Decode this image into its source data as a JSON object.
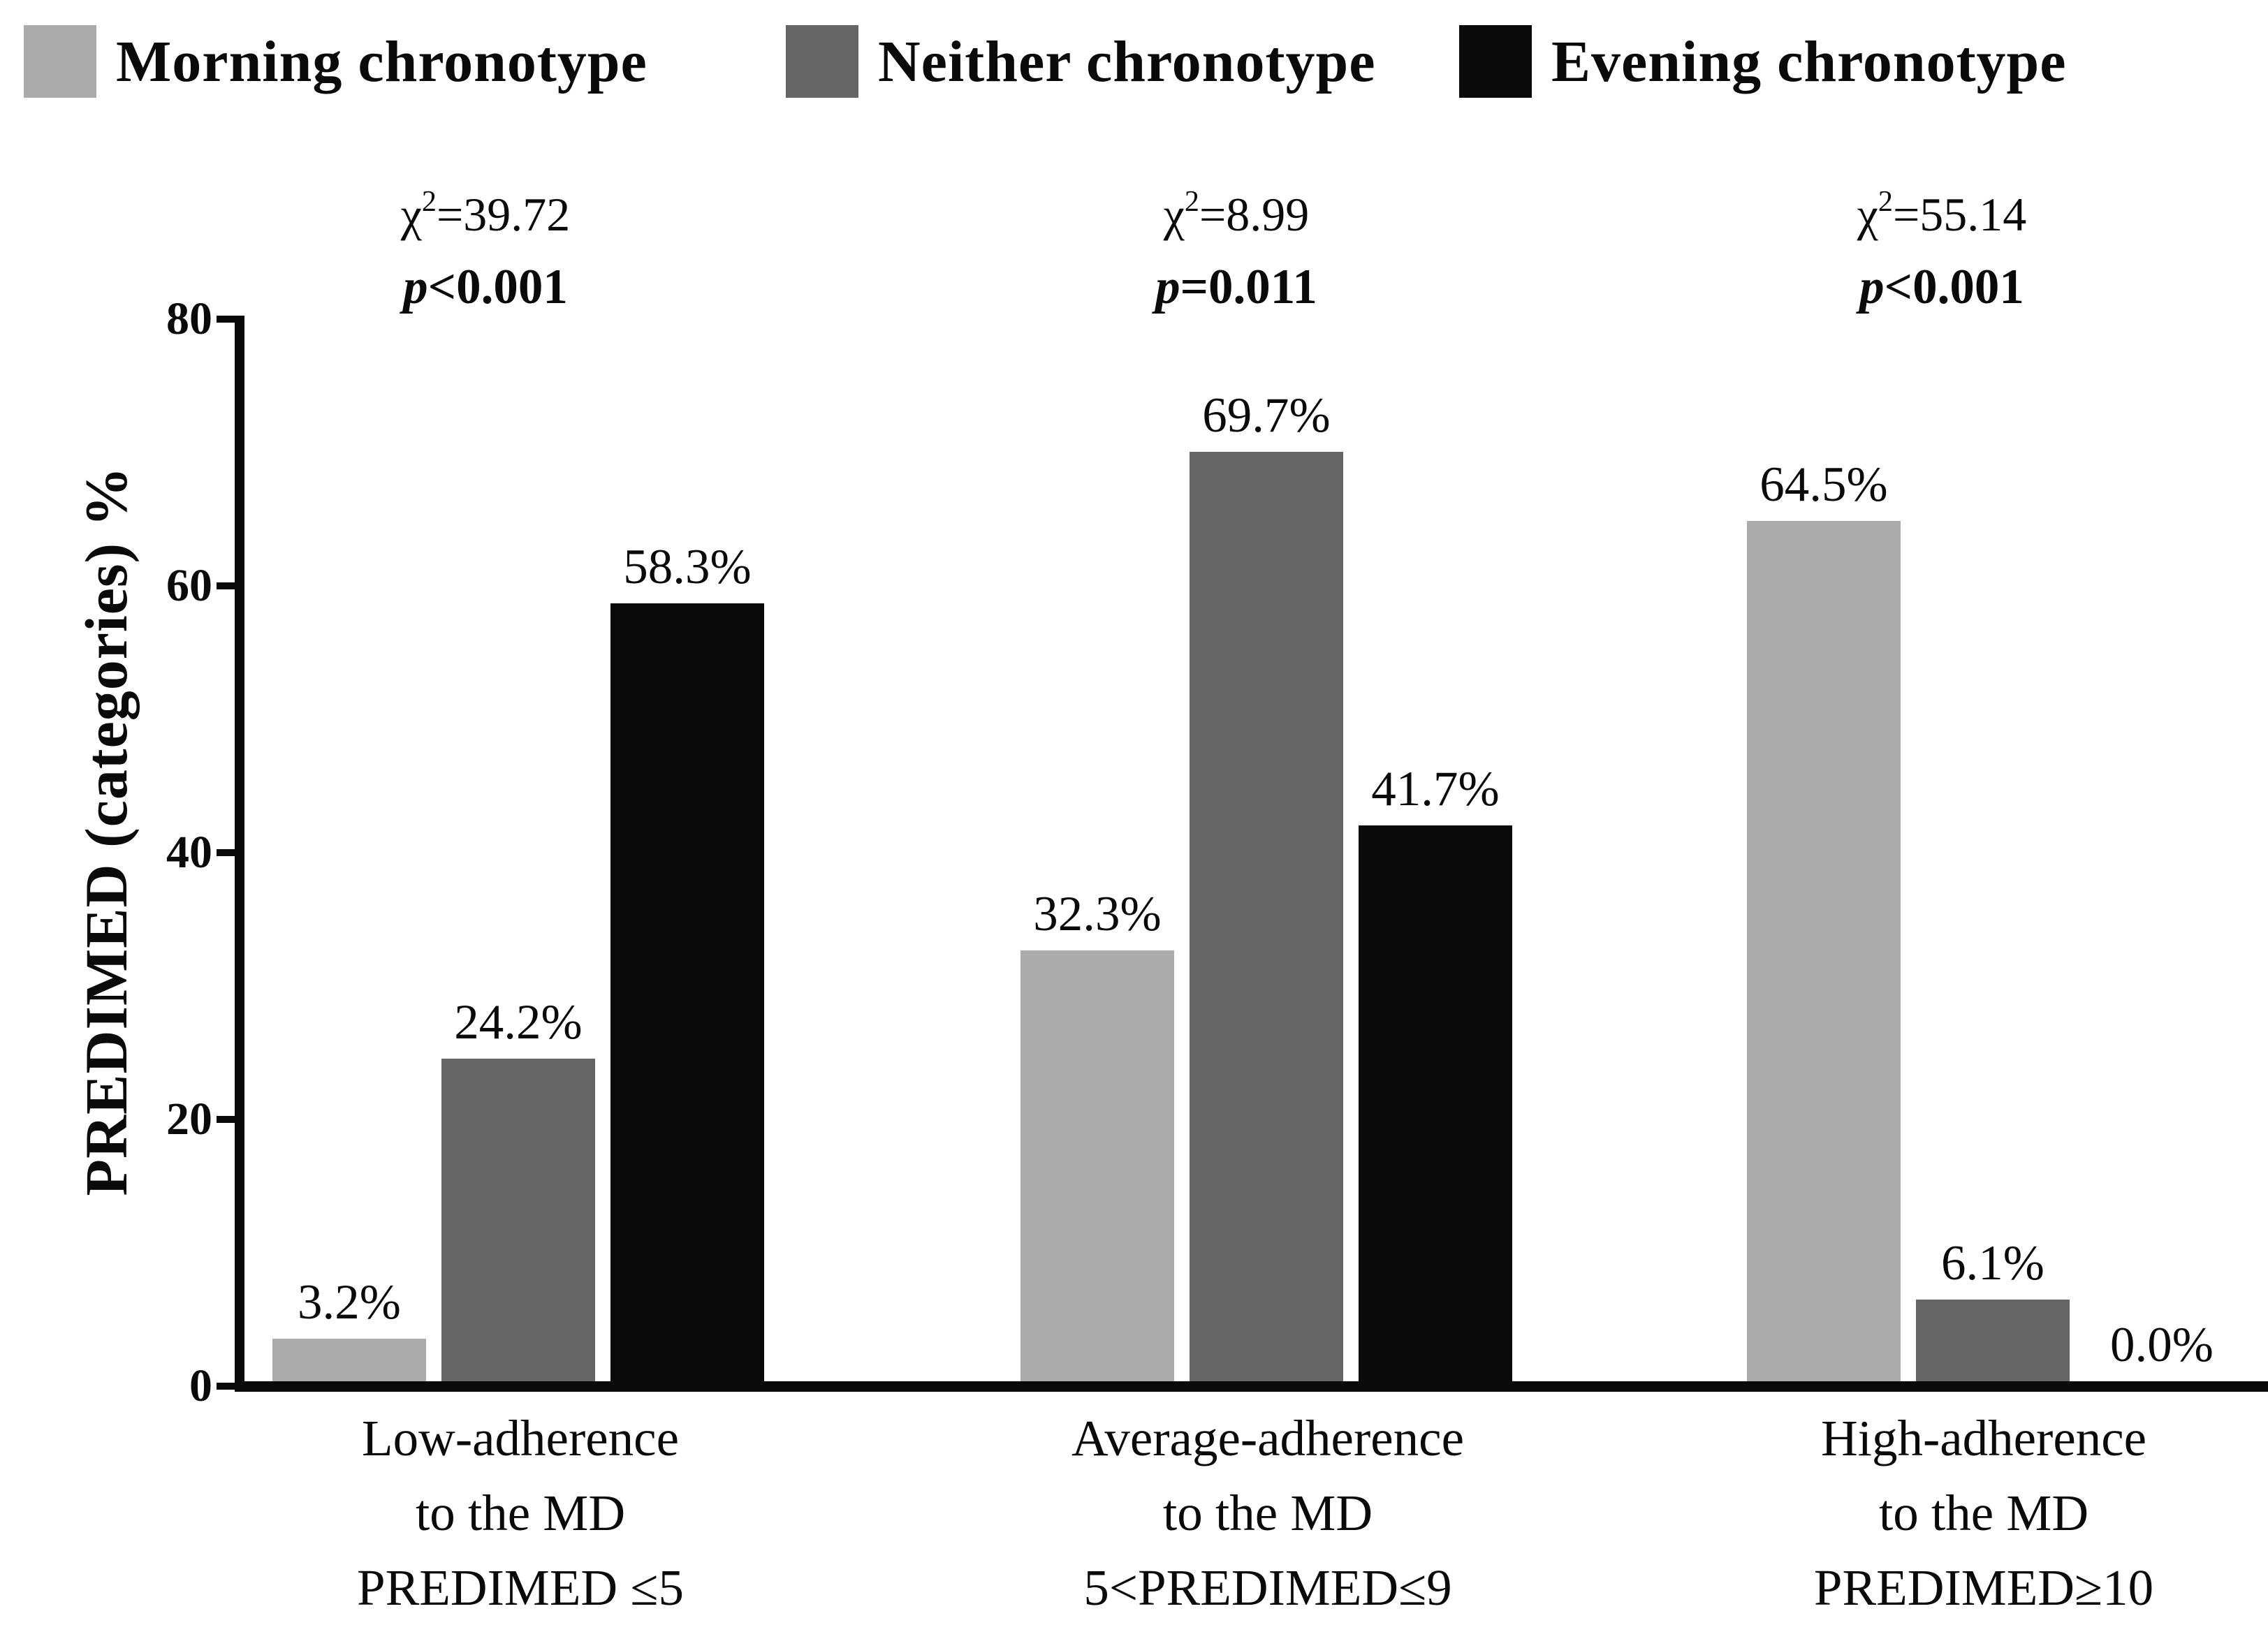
{
  "legend": {
    "items": [
      {
        "label": "Morning chronotype",
        "color": "#ABABAB"
      },
      {
        "label": "Neither chronotype",
        "color": "#656565"
      },
      {
        "label": "Evening chronotype",
        "color": "#0A0A0A"
      }
    ]
  },
  "y_axis": {
    "title": "PREDIMED (categories) %"
  },
  "chart_data": {
    "type": "bar",
    "title": "",
    "xlabel": "",
    "ylabel": "PREDIMED (categories) %",
    "ylim": [
      0,
      80
    ],
    "yticks": [
      0,
      20,
      40,
      60,
      80
    ],
    "grid": false,
    "legend_position": "top",
    "categories": [
      {
        "lines": [
          "Low-adherence",
          "to the MD",
          "PREDIMED ≤5"
        ]
      },
      {
        "lines": [
          "Average-adherence",
          "to the MD",
          "5<PREDIMED≤9"
        ]
      },
      {
        "lines": [
          "High-adherence",
          "to the MD",
          "PREDIMED≥10"
        ]
      }
    ],
    "series": [
      {
        "name": "Morning chronotype",
        "color": "#ABABAB",
        "values": [
          3.2,
          32.3,
          64.5
        ]
      },
      {
        "name": "Neither chronotype",
        "color": "#656565",
        "values": [
          24.2,
          69.7,
          6.1
        ]
      },
      {
        "name": "Evening chronotype",
        "color": "#0A0A0A",
        "values": [
          58.3,
          41.7,
          0.0
        ]
      }
    ],
    "value_label_suffix": "%",
    "annotations": [
      {
        "chi_symbol": "χ",
        "chi_sup": "2",
        "chi_value": "=39.72",
        "p_symbol": "p",
        "p_value": "<0.001"
      },
      {
        "chi_symbol": "χ",
        "chi_sup": "2",
        "chi_value": "=8.99",
        "p_symbol": "p",
        "p_value": "=0.011"
      },
      {
        "chi_symbol": "χ",
        "chi_sup": "2",
        "chi_value": "=55.14",
        "p_symbol": "p",
        "p_value": "<0.001"
      }
    ]
  }
}
